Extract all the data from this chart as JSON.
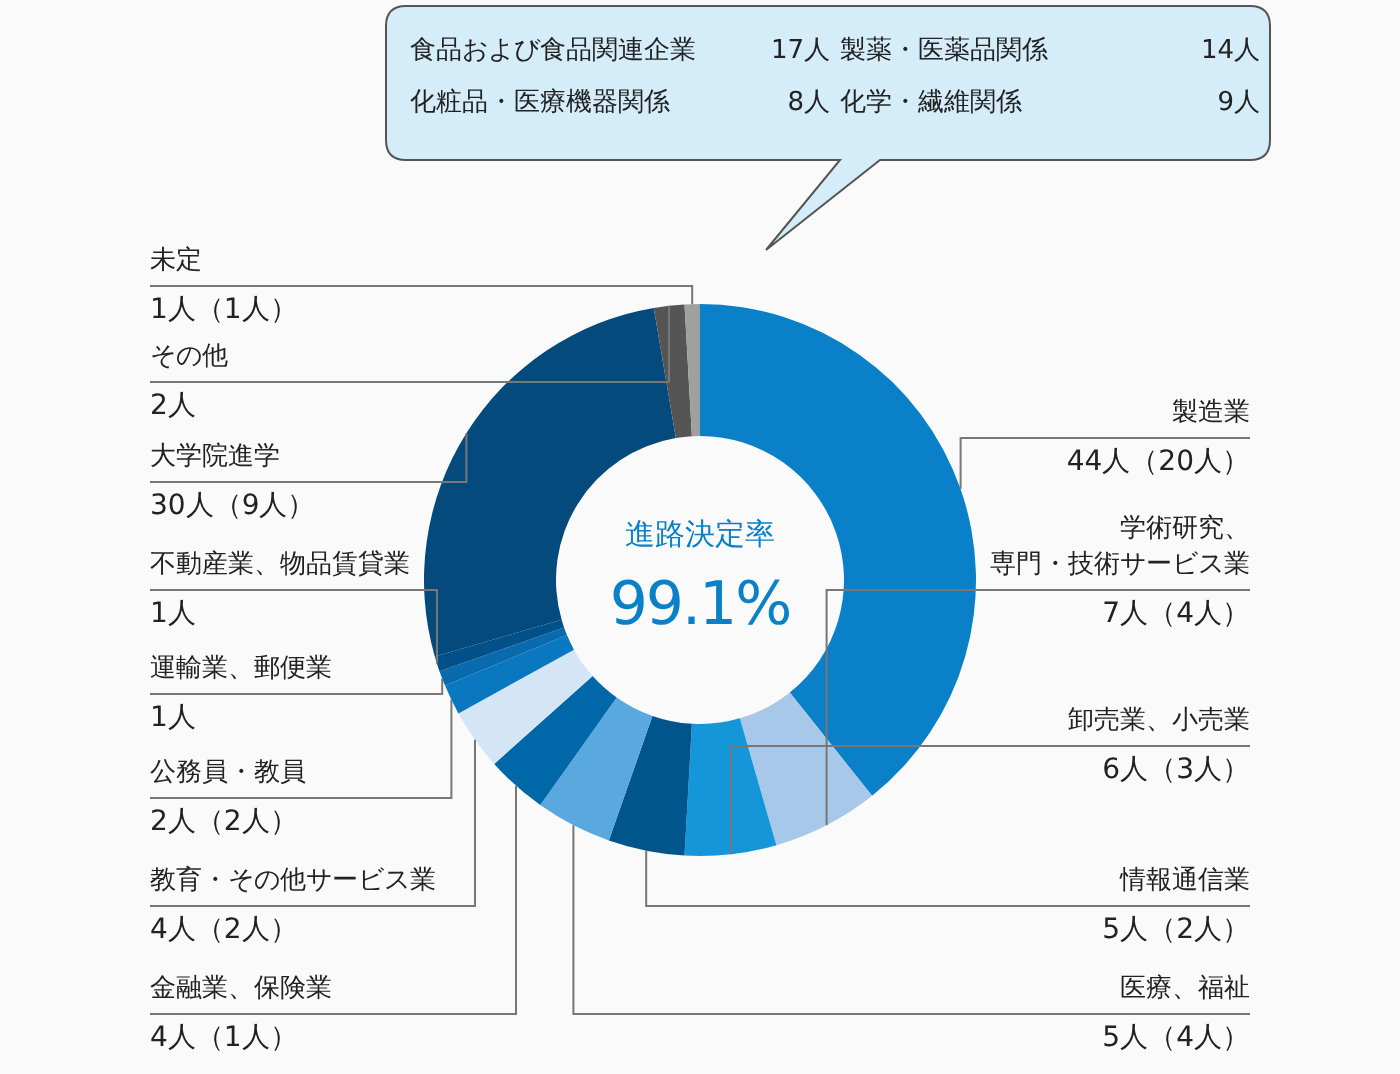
{
  "chart_data": {
    "type": "donut",
    "title": "進路決定率",
    "subtitle": "99.1%",
    "categories": [
      "製造業",
      "学術研究、専門・技術サービス業",
      "卸売業、小売業",
      "情報通信業",
      "医療、福祉",
      "金融業、保険業",
      "教育・その他サービス業",
      "公務員・教員",
      "運輸業、郵便業",
      "不動産業、物品賃貸業",
      "大学院進学",
      "その他",
      "未定"
    ],
    "values": [
      44,
      7,
      6,
      5,
      5,
      4,
      4,
      2,
      1,
      1,
      30,
      2,
      1
    ],
    "value_labels": [
      "44人（20人）",
      "7人（4人）",
      "6人（3人）",
      "5人（2人）",
      "5人（4人）",
      "4人（1人）",
      "4人（2人）",
      "2人（2人）",
      "1人",
      "1人",
      "30人（9人）",
      "2人",
      "1人（1人）"
    ],
    "colors": [
      "#0a80c8",
      "#a8c8ea",
      "#1496d8",
      "#00568c",
      "#5aa8e0",
      "#0068a8",
      "#d4e6f6",
      "#0a78c0",
      "#0a6aae",
      "#02508a",
      "#044a7c",
      "#555555",
      "#a0a0a0"
    ],
    "annotations": [
      "食品および食品関連企業 17人",
      "製薬・医薬品関係 14人",
      "化粧品・医療機器関係 8人",
      "化学・繊維関係 9人"
    ]
  }
}
